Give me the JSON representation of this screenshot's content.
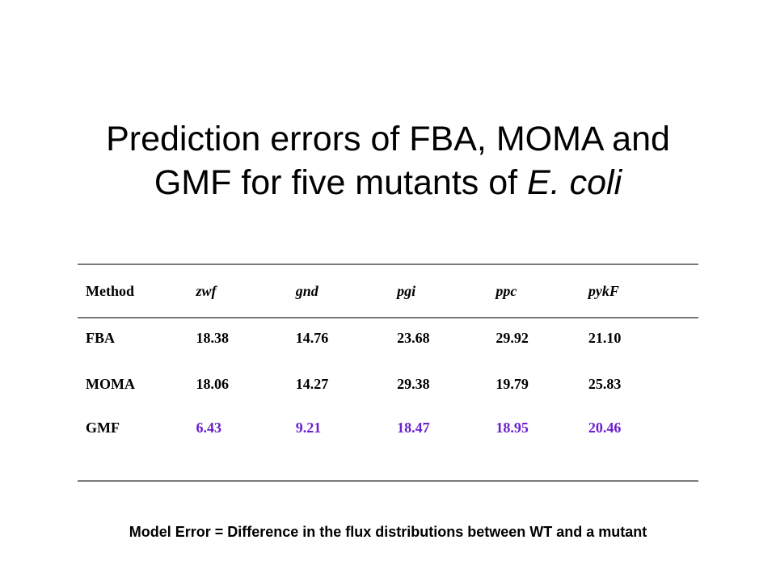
{
  "title": {
    "line1": "Prediction errors of FBA, MOMA and",
    "line2_prefix": "GMF for five mutants of ",
    "line2_italic": "E. coli"
  },
  "table": {
    "headers": [
      "Method",
      "zwf",
      "gnd",
      "pgi",
      "ppc",
      "pykF"
    ],
    "rows": [
      {
        "method": "FBA",
        "values": [
          "18.38",
          "14.76",
          "23.68",
          "29.92",
          "21.10"
        ]
      },
      {
        "method": "MOMA",
        "values": [
          "18.06",
          "14.27",
          "29.38",
          "19.79",
          "25.83"
        ]
      },
      {
        "method": "GMF",
        "values": [
          "6.43",
          "9.21",
          "18.47",
          "18.95",
          "20.46"
        ]
      }
    ]
  },
  "highlight_color": "#6a1fd1",
  "footnote": "Model Error = Difference in the flux distributions between WT and a mutant"
}
